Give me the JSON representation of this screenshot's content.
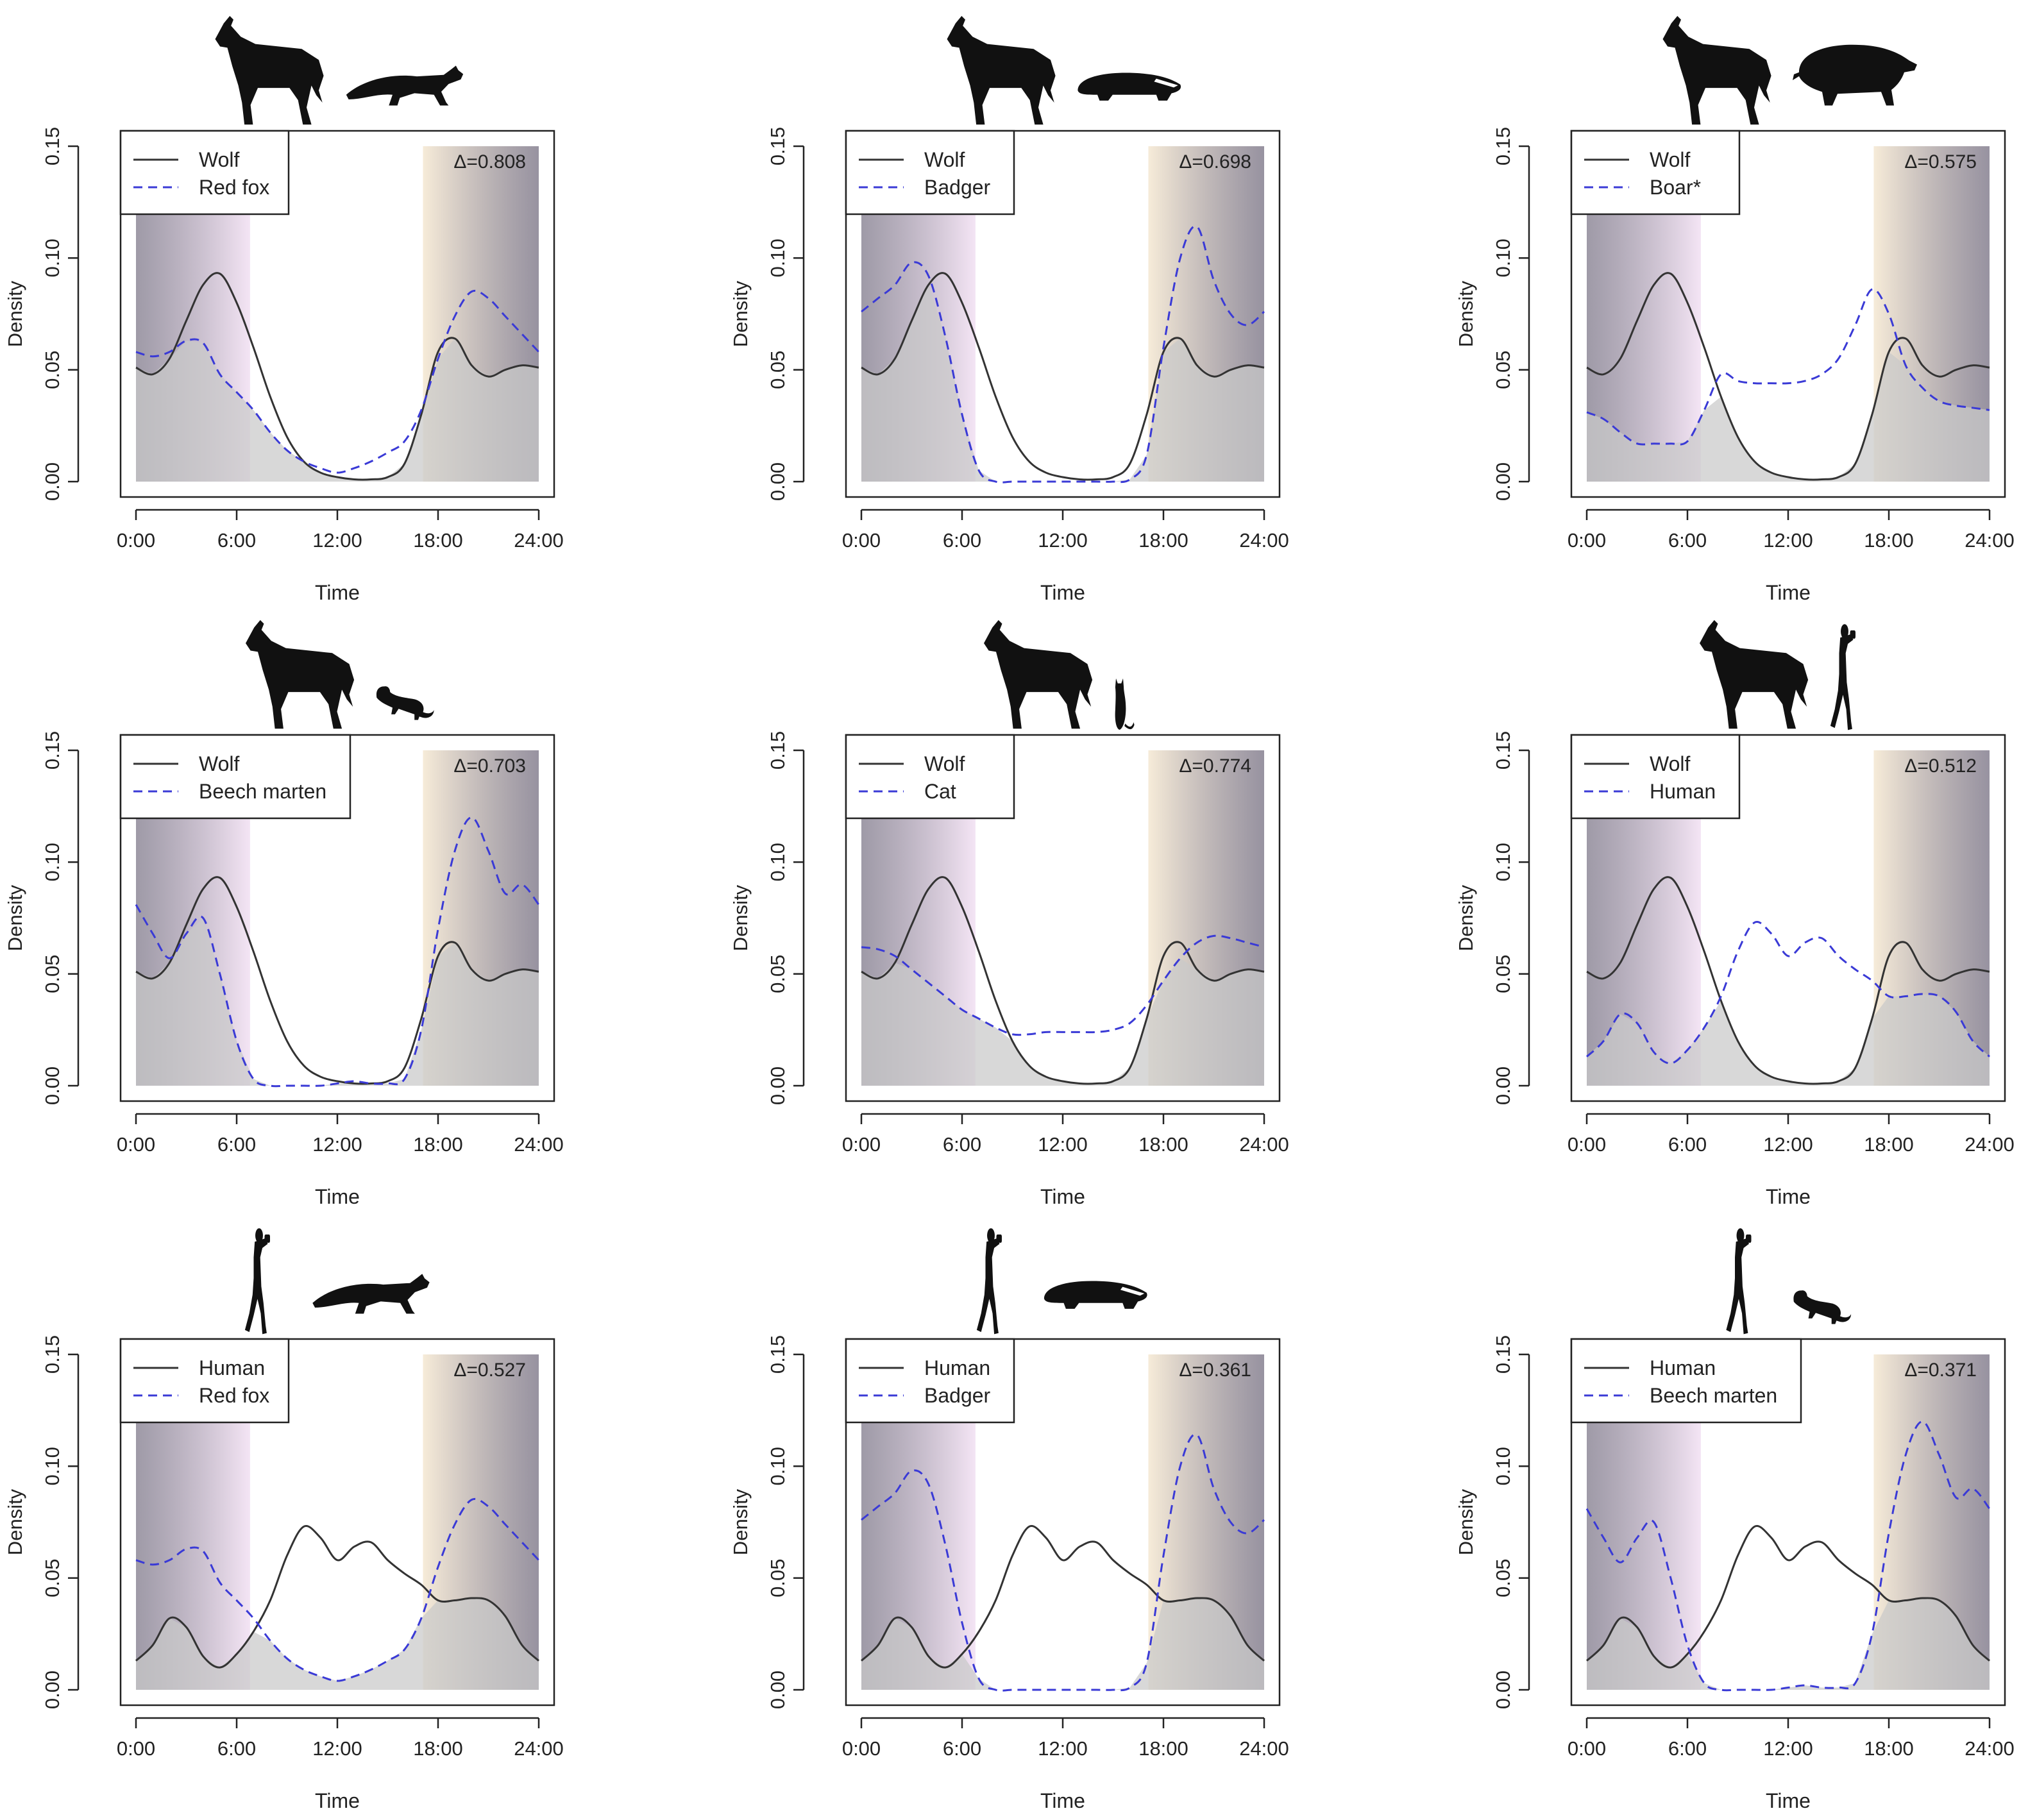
{
  "figure": {
    "x_tick_labels": [
      "0:00",
      "6:00",
      "12:00",
      "18:00",
      "24:00"
    ],
    "y_tick_labels": [
      "0.00",
      "0.05",
      "0.10",
      "0.15"
    ],
    "colors": {
      "reference_line": "#333333",
      "comparison_line": "#3a3ad6",
      "overlap_fill": "#c9c9c9",
      "night_shade": "#6b6478",
      "dawn_tint": "#f1def2",
      "dusk_tint": "#f5e8d2"
    }
  },
  "chart_data": [
    {
      "type": "line",
      "xlabel": "Time",
      "ylabel": "Density",
      "ylim": [
        0,
        0.15
      ],
      "xlim": [
        0,
        24
      ],
      "legend": [
        "Wolf",
        "Red fox"
      ],
      "overlap_label": "Δ=0.808",
      "icons": [
        "wolf-icon",
        "red-fox-icon"
      ],
      "x": [
        0,
        1,
        2,
        3,
        4,
        5,
        6,
        7,
        8,
        9,
        10,
        11,
        12,
        13,
        14,
        15,
        16,
        17,
        18,
        19,
        20,
        21,
        22,
        23,
        24
      ],
      "series": [
        {
          "name": "Wolf",
          "values": [
            0.051,
            0.048,
            0.055,
            0.072,
            0.088,
            0.093,
            0.08,
            0.06,
            0.038,
            0.02,
            0.009,
            0.004,
            0.002,
            0.001,
            0.001,
            0.002,
            0.008,
            0.03,
            0.058,
            0.064,
            0.052,
            0.047,
            0.05,
            0.052,
            0.051
          ]
        },
        {
          "name": "Red fox",
          "values": [
            0.058,
            0.056,
            0.058,
            0.063,
            0.062,
            0.048,
            0.04,
            0.032,
            0.022,
            0.014,
            0.009,
            0.006,
            0.004,
            0.006,
            0.009,
            0.013,
            0.018,
            0.032,
            0.055,
            0.074,
            0.085,
            0.082,
            0.074,
            0.066,
            0.058
          ]
        }
      ]
    },
    {
      "type": "line",
      "xlabel": "Time",
      "ylabel": "Density",
      "ylim": [
        0,
        0.15
      ],
      "xlim": [
        0,
        24
      ],
      "legend": [
        "Wolf",
        "Badger"
      ],
      "overlap_label": "Δ=0.698",
      "icons": [
        "wolf-icon",
        "badger-icon"
      ],
      "x": [
        0,
        1,
        2,
        3,
        4,
        5,
        6,
        7,
        8,
        9,
        10,
        11,
        12,
        13,
        14,
        15,
        16,
        17,
        18,
        19,
        20,
        21,
        22,
        23,
        24
      ],
      "series": [
        {
          "name": "Wolf",
          "values": [
            0.051,
            0.048,
            0.055,
            0.072,
            0.088,
            0.093,
            0.08,
            0.06,
            0.038,
            0.02,
            0.009,
            0.004,
            0.002,
            0.001,
            0.001,
            0.002,
            0.008,
            0.03,
            0.058,
            0.064,
            0.052,
            0.047,
            0.05,
            0.052,
            0.051
          ]
        },
        {
          "name": "Badger",
          "values": [
            0.076,
            0.082,
            0.088,
            0.098,
            0.092,
            0.065,
            0.03,
            0.005,
            0.0,
            0.0,
            0.0,
            0.0,
            0.0,
            0.0,
            0.0,
            0.0,
            0.001,
            0.012,
            0.06,
            0.1,
            0.114,
            0.09,
            0.075,
            0.07,
            0.076
          ]
        }
      ]
    },
    {
      "type": "line",
      "xlabel": "Time",
      "ylabel": "Density",
      "ylim": [
        0,
        0.15
      ],
      "xlim": [
        0,
        24
      ],
      "legend": [
        "Wolf",
        "Boar*"
      ],
      "overlap_label": "Δ=0.575",
      "icons": [
        "wolf-icon",
        "boar-icon"
      ],
      "x": [
        0,
        1,
        2,
        3,
        4,
        5,
        6,
        7,
        8,
        9,
        10,
        11,
        12,
        13,
        14,
        15,
        16,
        17,
        18,
        19,
        20,
        21,
        22,
        23,
        24
      ],
      "series": [
        {
          "name": "Wolf",
          "values": [
            0.051,
            0.048,
            0.055,
            0.072,
            0.088,
            0.093,
            0.08,
            0.06,
            0.038,
            0.02,
            0.009,
            0.004,
            0.002,
            0.001,
            0.001,
            0.002,
            0.008,
            0.03,
            0.058,
            0.064,
            0.052,
            0.047,
            0.05,
            0.052,
            0.051
          ]
        },
        {
          "name": "Boar*",
          "values": [
            0.031,
            0.028,
            0.022,
            0.017,
            0.017,
            0.017,
            0.018,
            0.032,
            0.048,
            0.045,
            0.044,
            0.044,
            0.044,
            0.045,
            0.048,
            0.055,
            0.07,
            0.086,
            0.075,
            0.052,
            0.042,
            0.036,
            0.034,
            0.033,
            0.032
          ]
        }
      ]
    },
    {
      "type": "line",
      "xlabel": "Time",
      "ylabel": "Density",
      "ylim": [
        0,
        0.15
      ],
      "xlim": [
        0,
        24
      ],
      "legend": [
        "Wolf",
        "Beech marten"
      ],
      "overlap_label": "Δ=0.703",
      "icons": [
        "wolf-icon",
        "beech-marten-icon"
      ],
      "x": [
        0,
        1,
        2,
        3,
        4,
        5,
        6,
        7,
        8,
        9,
        10,
        11,
        12,
        13,
        14,
        15,
        16,
        17,
        18,
        19,
        20,
        21,
        22,
        23,
        24
      ],
      "series": [
        {
          "name": "Wolf",
          "values": [
            0.051,
            0.048,
            0.055,
            0.072,
            0.088,
            0.093,
            0.08,
            0.06,
            0.038,
            0.02,
            0.009,
            0.004,
            0.002,
            0.001,
            0.001,
            0.002,
            0.008,
            0.03,
            0.058,
            0.064,
            0.052,
            0.047,
            0.05,
            0.052,
            0.051
          ]
        },
        {
          "name": "Beech marten",
          "values": [
            0.081,
            0.068,
            0.057,
            0.068,
            0.075,
            0.05,
            0.02,
            0.003,
            0.0,
            0.0,
            0.0,
            0.0,
            0.001,
            0.002,
            0.001,
            0.001,
            0.003,
            0.025,
            0.07,
            0.105,
            0.12,
            0.105,
            0.086,
            0.09,
            0.081
          ]
        }
      ]
    },
    {
      "type": "line",
      "xlabel": "Time",
      "ylabel": "Density",
      "ylim": [
        0,
        0.15
      ],
      "xlim": [
        0,
        24
      ],
      "legend": [
        "Wolf",
        "Cat"
      ],
      "overlap_label": "Δ=0.774",
      "icons": [
        "wolf-icon",
        "cat-icon"
      ],
      "x": [
        0,
        1,
        2,
        3,
        4,
        5,
        6,
        7,
        8,
        9,
        10,
        11,
        12,
        13,
        14,
        15,
        16,
        17,
        18,
        19,
        20,
        21,
        22,
        23,
        24
      ],
      "series": [
        {
          "name": "Wolf",
          "values": [
            0.051,
            0.048,
            0.055,
            0.072,
            0.088,
            0.093,
            0.08,
            0.06,
            0.038,
            0.02,
            0.009,
            0.004,
            0.002,
            0.001,
            0.001,
            0.002,
            0.008,
            0.03,
            0.058,
            0.064,
            0.052,
            0.047,
            0.05,
            0.052,
            0.051
          ]
        },
        {
          "name": "Cat",
          "values": [
            0.062,
            0.061,
            0.058,
            0.052,
            0.046,
            0.04,
            0.034,
            0.03,
            0.026,
            0.023,
            0.023,
            0.024,
            0.024,
            0.024,
            0.024,
            0.025,
            0.028,
            0.036,
            0.047,
            0.057,
            0.064,
            0.067,
            0.066,
            0.064,
            0.062
          ]
        }
      ]
    },
    {
      "type": "line",
      "xlabel": "Time",
      "ylabel": "Density",
      "ylim": [
        0,
        0.15
      ],
      "xlim": [
        0,
        24
      ],
      "legend": [
        "Wolf",
        "Human"
      ],
      "overlap_label": "Δ=0.512",
      "icons": [
        "wolf-icon",
        "human-icon"
      ],
      "x": [
        0,
        1,
        2,
        3,
        4,
        5,
        6,
        7,
        8,
        9,
        10,
        11,
        12,
        13,
        14,
        15,
        16,
        17,
        18,
        19,
        20,
        21,
        22,
        23,
        24
      ],
      "series": [
        {
          "name": "Wolf",
          "values": [
            0.051,
            0.048,
            0.055,
            0.072,
            0.088,
            0.093,
            0.08,
            0.06,
            0.038,
            0.02,
            0.009,
            0.004,
            0.002,
            0.001,
            0.001,
            0.002,
            0.008,
            0.03,
            0.058,
            0.064,
            0.052,
            0.047,
            0.05,
            0.052,
            0.051
          ]
        },
        {
          "name": "Human",
          "values": [
            0.013,
            0.02,
            0.032,
            0.028,
            0.015,
            0.01,
            0.016,
            0.026,
            0.04,
            0.06,
            0.073,
            0.068,
            0.058,
            0.064,
            0.066,
            0.058,
            0.052,
            0.047,
            0.04,
            0.04,
            0.041,
            0.04,
            0.033,
            0.02,
            0.013
          ]
        }
      ]
    },
    {
      "type": "line",
      "xlabel": "Time",
      "ylabel": "Density",
      "ylim": [
        0,
        0.15
      ],
      "xlim": [
        0,
        24
      ],
      "legend": [
        "Human",
        "Red fox"
      ],
      "overlap_label": "Δ=0.527",
      "icons": [
        "human-icon",
        "red-fox-icon"
      ],
      "x": [
        0,
        1,
        2,
        3,
        4,
        5,
        6,
        7,
        8,
        9,
        10,
        11,
        12,
        13,
        14,
        15,
        16,
        17,
        18,
        19,
        20,
        21,
        22,
        23,
        24
      ],
      "series": [
        {
          "name": "Human",
          "values": [
            0.013,
            0.02,
            0.032,
            0.028,
            0.015,
            0.01,
            0.016,
            0.026,
            0.04,
            0.06,
            0.073,
            0.068,
            0.058,
            0.064,
            0.066,
            0.058,
            0.052,
            0.047,
            0.04,
            0.04,
            0.041,
            0.04,
            0.033,
            0.02,
            0.013
          ]
        },
        {
          "name": "Red fox",
          "values": [
            0.058,
            0.056,
            0.058,
            0.063,
            0.062,
            0.048,
            0.04,
            0.032,
            0.022,
            0.014,
            0.009,
            0.006,
            0.004,
            0.006,
            0.009,
            0.013,
            0.018,
            0.032,
            0.055,
            0.074,
            0.085,
            0.082,
            0.074,
            0.066,
            0.058
          ]
        }
      ]
    },
    {
      "type": "line",
      "xlabel": "Time",
      "ylabel": "Density",
      "ylim": [
        0,
        0.15
      ],
      "xlim": [
        0,
        24
      ],
      "legend": [
        "Human",
        "Badger"
      ],
      "overlap_label": "Δ=0.361",
      "icons": [
        "human-icon",
        "badger-icon"
      ],
      "x": [
        0,
        1,
        2,
        3,
        4,
        5,
        6,
        7,
        8,
        9,
        10,
        11,
        12,
        13,
        14,
        15,
        16,
        17,
        18,
        19,
        20,
        21,
        22,
        23,
        24
      ],
      "series": [
        {
          "name": "Human",
          "values": [
            0.013,
            0.02,
            0.032,
            0.028,
            0.015,
            0.01,
            0.016,
            0.026,
            0.04,
            0.06,
            0.073,
            0.068,
            0.058,
            0.064,
            0.066,
            0.058,
            0.052,
            0.047,
            0.04,
            0.04,
            0.041,
            0.04,
            0.033,
            0.02,
            0.013
          ]
        },
        {
          "name": "Badger",
          "values": [
            0.076,
            0.082,
            0.088,
            0.098,
            0.092,
            0.065,
            0.03,
            0.005,
            0.0,
            0.0,
            0.0,
            0.0,
            0.0,
            0.0,
            0.0,
            0.0,
            0.001,
            0.012,
            0.06,
            0.1,
            0.114,
            0.09,
            0.075,
            0.07,
            0.076
          ]
        }
      ]
    },
    {
      "type": "line",
      "xlabel": "Time",
      "ylabel": "Density",
      "ylim": [
        0,
        0.15
      ],
      "xlim": [
        0,
        24
      ],
      "legend": [
        "Human",
        "Beech marten"
      ],
      "overlap_label": "Δ=0.371",
      "icons": [
        "human-icon",
        "beech-marten-icon"
      ],
      "x": [
        0,
        1,
        2,
        3,
        4,
        5,
        6,
        7,
        8,
        9,
        10,
        11,
        12,
        13,
        14,
        15,
        16,
        17,
        18,
        19,
        20,
        21,
        22,
        23,
        24
      ],
      "series": [
        {
          "name": "Human",
          "values": [
            0.013,
            0.02,
            0.032,
            0.028,
            0.015,
            0.01,
            0.016,
            0.026,
            0.04,
            0.06,
            0.073,
            0.068,
            0.058,
            0.064,
            0.066,
            0.058,
            0.052,
            0.047,
            0.04,
            0.04,
            0.041,
            0.04,
            0.033,
            0.02,
            0.013
          ]
        },
        {
          "name": "Beech marten",
          "values": [
            0.081,
            0.068,
            0.057,
            0.068,
            0.075,
            0.05,
            0.02,
            0.003,
            0.0,
            0.0,
            0.0,
            0.0,
            0.001,
            0.002,
            0.001,
            0.001,
            0.003,
            0.025,
            0.07,
            0.105,
            0.12,
            0.105,
            0.086,
            0.09,
            0.081
          ]
        }
      ]
    }
  ]
}
